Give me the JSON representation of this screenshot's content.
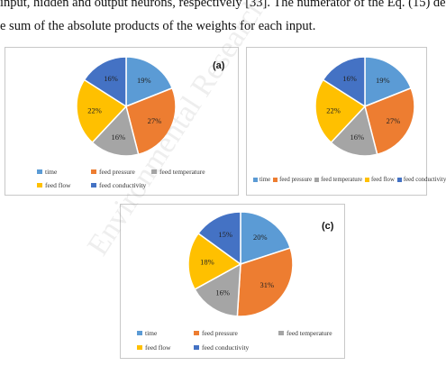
{
  "document": {
    "line1": "input, hidden and output neurons, respectively [33]. The numerator of the Eq. (15) de",
    "line2": "e sum of the absolute products of the weights for each input.",
    "watermark": "Environmental Research"
  },
  "colors": {
    "time": "#5b9bd5",
    "feed pressure": "#ed7d31",
    "feed temperature": "#a5a5a5",
    "feed flow": "#ffc000",
    "feed conductivity": "#4472c4"
  },
  "chart_data": [
    {
      "type": "pie",
      "panel_label": "(a)",
      "categories": [
        "time",
        "feed pressure",
        "feed temperature",
        "feed flow",
        "feed conductivity"
      ],
      "values": [
        19,
        27,
        16,
        22,
        16
      ],
      "value_labels": [
        "19%",
        "27%",
        "16%",
        "22%",
        "16%"
      ],
      "legend_position": "bottom"
    },
    {
      "type": "pie",
      "panel_label": "",
      "categories": [
        "time",
        "feed pressure",
        "feed temperature",
        "feed flow",
        "feed conductivity"
      ],
      "values": [
        19,
        27,
        16,
        22,
        16
      ],
      "value_labels": [
        "19%",
        "27%",
        "16%",
        "22%",
        "16%"
      ],
      "legend_position": "bottom"
    },
    {
      "type": "pie",
      "panel_label": "(c)",
      "categories": [
        "time",
        "feed pressure",
        "feed temperature",
        "feed flow",
        "feed conductivity"
      ],
      "values": [
        20,
        31,
        16,
        18,
        15
      ],
      "value_labels": [
        "20%",
        "31%",
        "16%",
        "18%",
        "15%"
      ],
      "legend_position": "bottom"
    }
  ]
}
